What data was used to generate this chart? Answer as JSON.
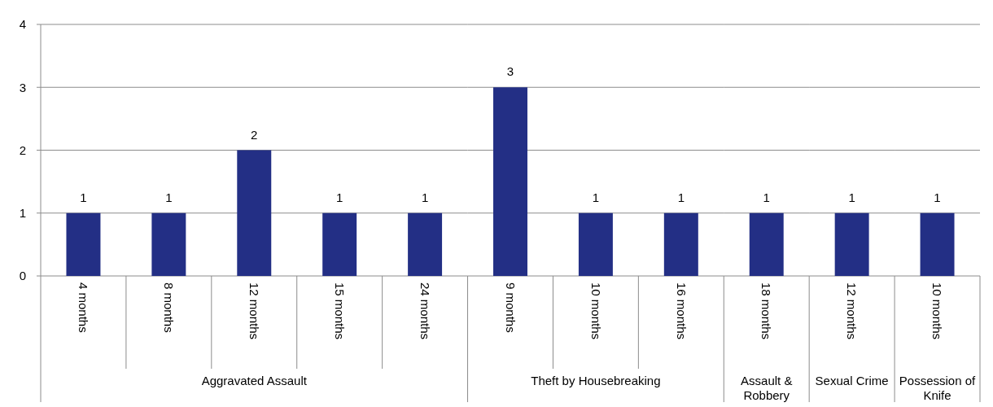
{
  "chart_data": [
    {
      "type": "bar",
      "xlabel": "Aggravated Assault",
      "categories": [
        "4 months",
        "8 months",
        "12 months",
        "15 months",
        "24 months"
      ],
      "values": [
        1,
        1,
        2,
        1,
        1
      ],
      "color": "#232f85",
      "ylim": [
        0,
        4
      ],
      "yticks": [
        0,
        1,
        2,
        3,
        4
      ],
      "grid": "y",
      "data_labels": true
    },
    {
      "type": "bar",
      "xlabel": "Theft by Housebreaking",
      "categories": [
        "9 months",
        "10 months",
        "16 months"
      ],
      "values": [
        3,
        1,
        1
      ],
      "color": "#232f85",
      "ylim": [
        0,
        4
      ],
      "yticks": [
        0,
        1,
        2,
        3,
        4
      ],
      "grid": "y",
      "data_labels": true,
      "tick_labels": "x"
    },
    {
      "type": "bar",
      "xlabel": "Assault & Robbery",
      "categories": [
        "18 months"
      ],
      "values": [
        1
      ],
      "color": "#232f85",
      "ylim": [
        0,
        4
      ],
      "yticks": [
        0,
        1,
        2,
        3,
        4
      ],
      "grid": "y",
      "data_labels": true,
      "tick_labels": "x"
    },
    {
      "type": "bar",
      "xlabel": "Sexual Crime",
      "categories": [
        "12 months"
      ],
      "values": [
        1
      ],
      "color": "#232f85",
      "ylim": [
        0,
        4
      ],
      "yticks": [
        0,
        1,
        2,
        3,
        4
      ],
      "grid": "y",
      "data_labels": true,
      "tick_labels": "x"
    },
    {
      "type": "bar",
      "xlabel": "Possession of Knife",
      "categories": [
        "10 months"
      ],
      "values": [
        1
      ],
      "color": "#232f85",
      "ylim": [
        0,
        4
      ],
      "yticks": [
        0,
        1,
        2,
        3,
        4
      ],
      "grid": "y",
      "data_labels": true,
      "tick_labels": "x"
    }
  ]
}
